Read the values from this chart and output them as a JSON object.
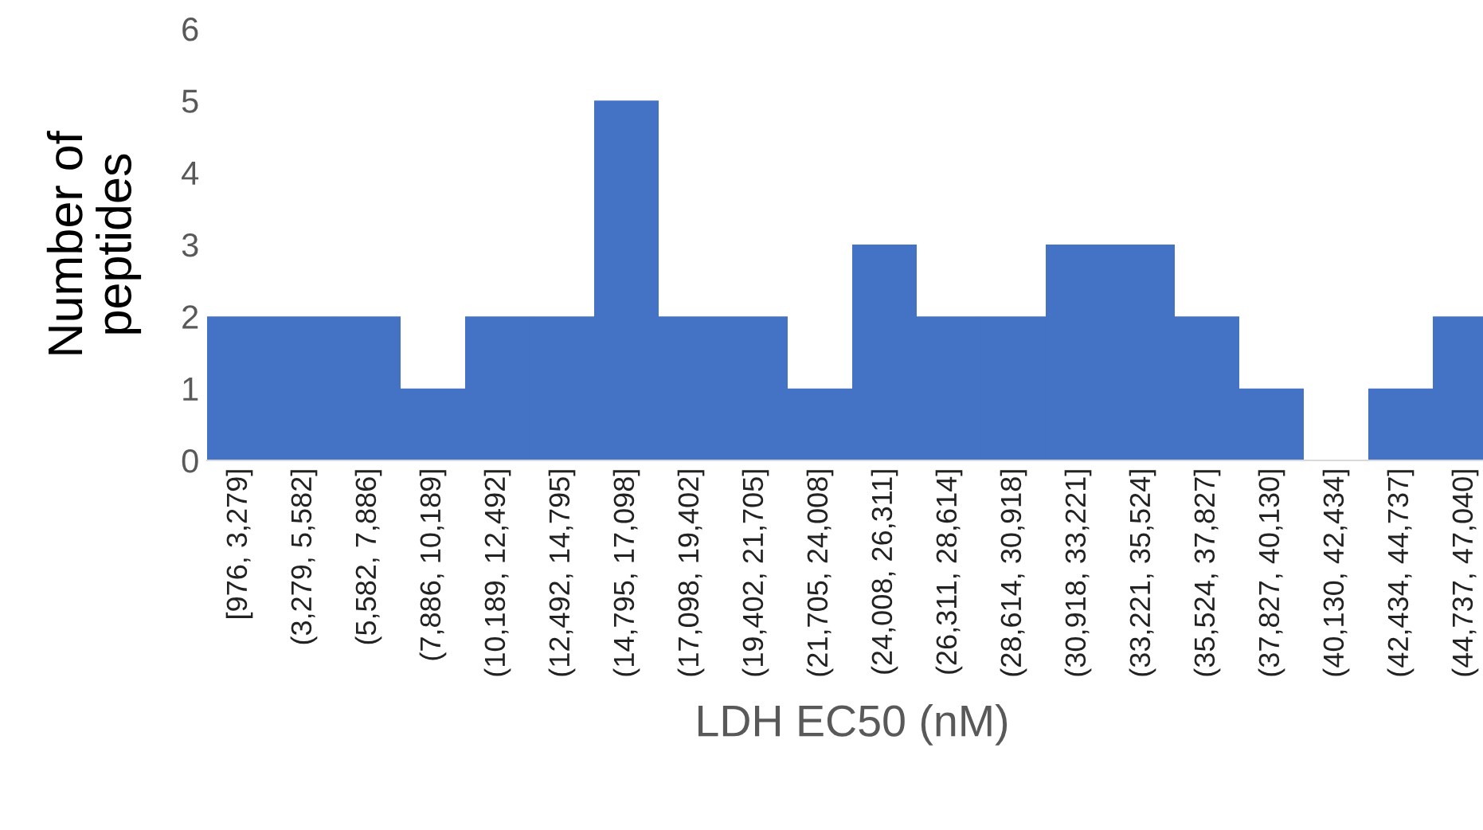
{
  "chart_data": {
    "type": "bar",
    "categories": [
      "[976, 3,279]",
      "(3,279, 5,582]",
      "(5,582, 7,886]",
      "(7,886, 10,189]",
      "(10,189, 12,492]",
      "(12,492, 14,795]",
      "(14,795, 17,098]",
      "(17,098, 19,402]",
      "(19,402, 21,705]",
      "(21,705, 24,008]",
      "(24,008, 26,311]",
      "(26,311, 28,614]",
      "(28,614, 30,918]",
      "(30,918, 33,221]",
      "(33,221, 35,524]",
      "(35,524, 37,827]",
      "(37,827, 40,130]",
      "(40,130, 42,434]",
      "(42,434, 44,737]",
      "(44,737, 47,040]"
    ],
    "values": [
      2,
      2,
      2,
      1,
      2,
      2,
      5,
      2,
      2,
      1,
      3,
      2,
      2,
      3,
      3,
      2,
      1,
      0,
      1,
      2
    ],
    "color": "#4472c4",
    "xlabel": "LDH EC50 (nM)",
    "ylabel": "Number of\npeptides",
    "ylim": [
      0,
      6
    ],
    "yticks": [
      0,
      1,
      2,
      3,
      4,
      5,
      6
    ],
    "grid": false,
    "legend": false
  }
}
